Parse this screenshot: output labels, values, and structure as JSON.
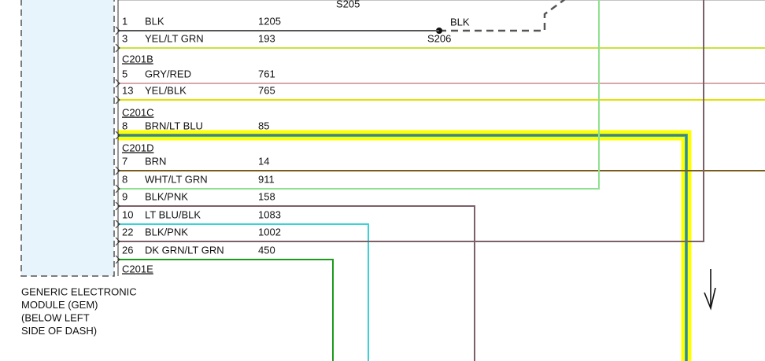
{
  "splices": {
    "top": "S205",
    "bottom": "S206"
  },
  "splice_wire_color": "BLK",
  "pins": [
    {
      "pin": "1",
      "color": "BLK",
      "circuit": "1205"
    },
    {
      "pin": "3",
      "color": "YEL/LT GRN",
      "circuit": "193"
    },
    {
      "pin": "5",
      "color": "GRY/RED",
      "circuit": "761"
    },
    {
      "pin": "13",
      "color": "YEL/BLK",
      "circuit": "765"
    },
    {
      "pin": "8",
      "color": "BRN/LT BLU",
      "circuit": "85"
    },
    {
      "pin": "7",
      "color": "BRN",
      "circuit": "14"
    },
    {
      "pin": "8",
      "color": "WHT/LT GRN",
      "circuit": "911"
    },
    {
      "pin": "9",
      "color": "BLK/PNK",
      "circuit": "158"
    },
    {
      "pin": "10",
      "color": "LT BLU/BLK",
      "circuit": "1083"
    },
    {
      "pin": "22",
      "color": "BLK/PNK",
      "circuit": "1002"
    },
    {
      "pin": "26",
      "color": "DK GRN/LT GRN",
      "circuit": "450"
    }
  ],
  "connectors": [
    "C201B",
    "C201C",
    "C201D",
    "C201E"
  ],
  "module_label": [
    "GENERIC ELECTRONIC",
    "MODULE (GEM)",
    "(BELOW LEFT",
    "SIDE OF DASH)"
  ]
}
